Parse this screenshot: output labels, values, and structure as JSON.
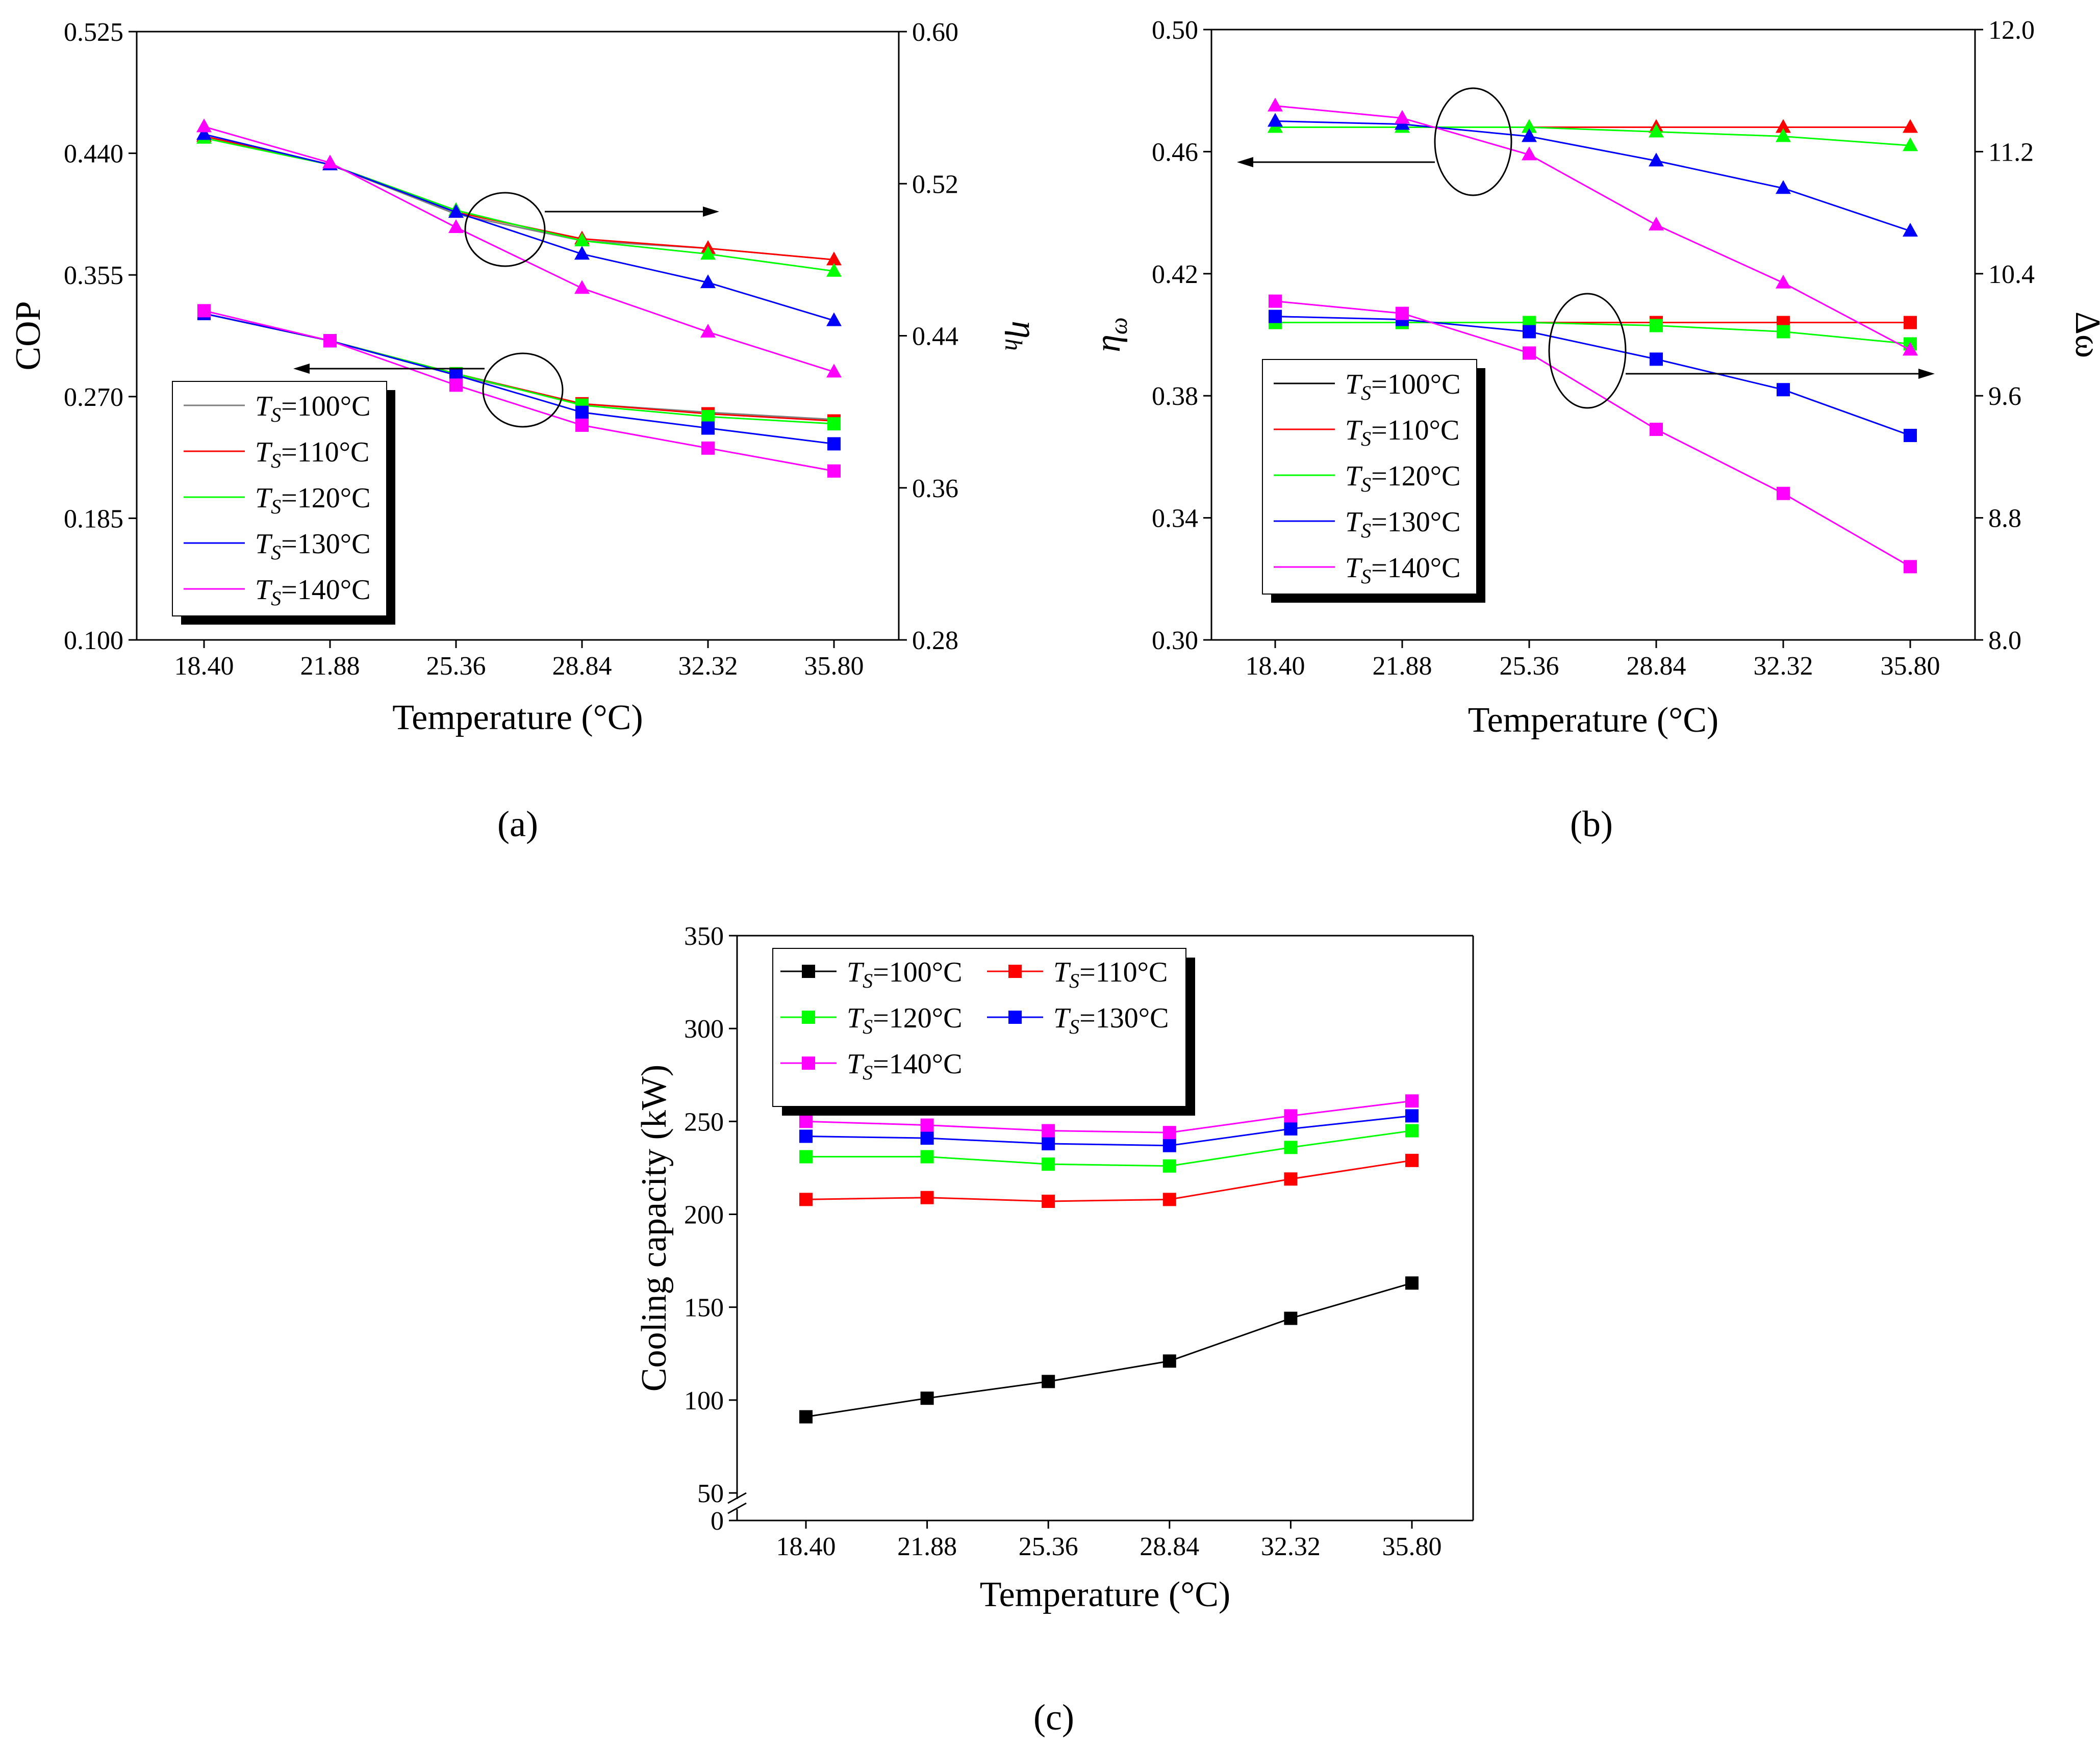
{
  "chart_data": [
    {
      "panel_label": "(a)",
      "type": "line",
      "xlabel": "Temperature (°C)",
      "x": [
        18.4,
        21.88,
        25.36,
        28.84,
        32.32,
        35.8
      ],
      "x_tick_labels": [
        "18.40",
        "21.88",
        "25.36",
        "28.84",
        "32.32",
        "35.80"
      ],
      "ylabel": "COP",
      "ylim": [
        0.1,
        0.525
      ],
      "y_ticks": [
        "0.100",
        "0.185",
        "0.270",
        "0.355",
        "0.440",
        "0.525"
      ],
      "y2label_symbol": "η",
      "y2label_sub": "h",
      "y2lim": [
        0.28,
        0.6
      ],
      "y2_ticks": [
        "0.28",
        "0.36",
        "0.44",
        "0.52",
        "0.60"
      ],
      "legend_placement": "bottom-left",
      "series": [
        {
          "legend_sym": "T",
          "legend_sub": "S",
          "legend_rest": "=100°C",
          "color": "#808080",
          "left_values": [
            0.328,
            0.309,
            0.285,
            0.265,
            0.259,
            0.254
          ],
          "right_values": [
            0.545,
            0.53,
            0.504,
            0.49,
            0.486,
            0.48
          ]
        },
        {
          "legend_sym": "T",
          "legend_sub": "S",
          "legend_rest": "=110°C",
          "color": "#ff0000",
          "left_values": [
            0.328,
            0.309,
            0.286,
            0.265,
            0.258,
            0.253
          ],
          "right_values": [
            0.545,
            0.53,
            0.505,
            0.491,
            0.486,
            0.48
          ]
        },
        {
          "legend_sym": "T",
          "legend_sub": "S",
          "legend_rest": "=120°C",
          "color": "#00ff00",
          "left_values": [
            0.328,
            0.309,
            0.286,
            0.264,
            0.256,
            0.251
          ],
          "right_values": [
            0.544,
            0.53,
            0.506,
            0.49,
            0.483,
            0.474
          ]
        },
        {
          "legend_sym": "T",
          "legend_sub": "S",
          "legend_rest": "=130°C",
          "color": "#0000ff",
          "left_values": [
            0.328,
            0.309,
            0.285,
            0.259,
            0.248,
            0.237
          ],
          "right_values": [
            0.546,
            0.53,
            0.505,
            0.483,
            0.468,
            0.448
          ]
        },
        {
          "legend_sym": "T",
          "legend_sub": "S",
          "legend_rest": "=140°C",
          "color": "#ff00ff",
          "left_values": [
            0.33,
            0.309,
            0.278,
            0.25,
            0.234,
            0.218
          ],
          "right_values": [
            0.55,
            0.531,
            0.497,
            0.465,
            0.442,
            0.421
          ]
        }
      ]
    },
    {
      "panel_label": "(b)",
      "type": "line",
      "xlabel": "Temperature (°C)",
      "x": [
        18.4,
        21.88,
        25.36,
        28.84,
        32.32,
        35.8
      ],
      "x_tick_labels": [
        "18.40",
        "21.88",
        "25.36",
        "28.84",
        "32.32",
        "35.80"
      ],
      "ylabel_symbol": "η",
      "ylabel_sub": "ω",
      "ylim": [
        0.3,
        0.5
      ],
      "y_ticks": [
        "0.30",
        "0.34",
        "0.38",
        "0.42",
        "0.46",
        "0.50"
      ],
      "y2label": "Δω",
      "y2lim": [
        8.0,
        12.0
      ],
      "y2_ticks": [
        "8.0",
        "8.8",
        "9.6",
        "10.4",
        "11.2",
        "12.0"
      ],
      "legend_placement": "bottom-left",
      "series": [
        {
          "legend_sym": "T",
          "legend_sub": "S",
          "legend_rest": "=100°C",
          "color": "#000000",
          "left_values": [
            0.404,
            0.404,
            0.404,
            0.404,
            0.404,
            0.404
          ],
          "right_values": [
            11.36,
            11.36,
            11.36,
            11.36,
            11.36,
            11.36
          ]
        },
        {
          "legend_sym": "T",
          "legend_sub": "S",
          "legend_rest": "=110°C",
          "color": "#ff0000",
          "left_values": [
            0.404,
            0.404,
            0.404,
            0.404,
            0.404,
            0.404
          ],
          "right_values": [
            11.36,
            11.36,
            11.36,
            11.36,
            11.36,
            11.36
          ]
        },
        {
          "legend_sym": "T",
          "legend_sub": "S",
          "legend_rest": "=120°C",
          "color": "#00ff00",
          "left_values": [
            0.404,
            0.404,
            0.404,
            0.403,
            0.401,
            0.397
          ],
          "right_values": [
            11.36,
            11.36,
            11.36,
            11.33,
            11.3,
            11.24
          ]
        },
        {
          "legend_sym": "T",
          "legend_sub": "S",
          "legend_rest": "=130°C",
          "color": "#0000ff",
          "left_values": [
            0.406,
            0.405,
            0.401,
            0.392,
            0.382,
            0.367
          ],
          "right_values": [
            11.4,
            11.38,
            11.3,
            11.14,
            10.96,
            10.68
          ]
        },
        {
          "legend_sym": "T",
          "legend_sub": "S",
          "legend_rest": "=140°C",
          "color": "#ff00ff",
          "left_values": [
            0.411,
            0.407,
            0.394,
            0.369,
            0.348,
            0.324
          ],
          "right_values": [
            11.5,
            11.42,
            11.18,
            10.72,
            10.34,
            9.9
          ]
        }
      ]
    },
    {
      "panel_label": "(c)",
      "type": "line",
      "xlabel": "Temperature (°C)",
      "x": [
        18.4,
        21.88,
        25.36,
        28.84,
        32.32,
        35.8
      ],
      "x_tick_labels": [
        "18.40",
        "21.88",
        "25.36",
        "28.84",
        "32.32",
        "35.80"
      ],
      "ylabel": "Cooling capacity (kW)",
      "ylim": [
        50,
        350
      ],
      "y_ticks": [
        "50",
        "100",
        "150",
        "200",
        "250",
        "300",
        "350"
      ],
      "y_break_label": "0",
      "legend_placement": "top-left",
      "series": [
        {
          "legend_sym": "T",
          "legend_sub": "S",
          "legend_rest": "=100°C",
          "color": "#000000",
          "values": [
            91,
            101,
            110,
            121,
            144,
            163
          ]
        },
        {
          "legend_sym": "T",
          "legend_sub": "S",
          "legend_rest": "=110°C",
          "color": "#ff0000",
          "values": [
            208,
            209,
            207,
            208,
            219,
            229
          ]
        },
        {
          "legend_sym": "T",
          "legend_sub": "S",
          "legend_rest": "=120°C",
          "color": "#00ff00",
          "values": [
            231,
            231,
            227,
            226,
            236,
            245
          ]
        },
        {
          "legend_sym": "T",
          "legend_sub": "S",
          "legend_rest": "=130°C",
          "color": "#0000ff",
          "values": [
            242,
            241,
            238,
            237,
            246,
            253
          ]
        },
        {
          "legend_sym": "T",
          "legend_sub": "S",
          "legend_rest": "=140°C",
          "color": "#ff00ff",
          "values": [
            250,
            248,
            245,
            244,
            253,
            261
          ]
        }
      ]
    }
  ]
}
